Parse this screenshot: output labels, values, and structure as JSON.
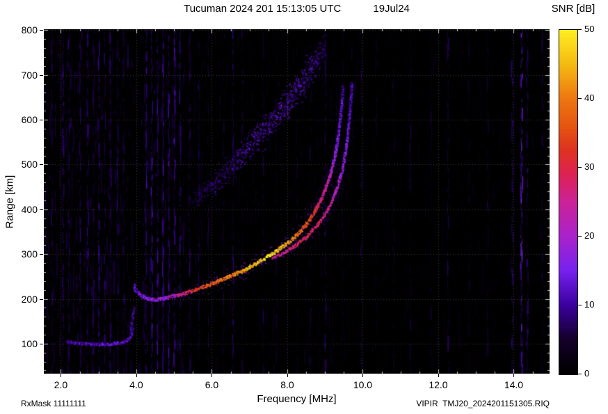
{
  "header": {
    "title": "Tucuman 2024 201 15:13:05 UTC",
    "date": "19Jul24",
    "colorbar_label": "SNR [dB]"
  },
  "footer": {
    "rx_mask": "RxMask 11111111",
    "file": "VIPIR  TMJ20_2024201151305.RIQ"
  },
  "chart_data": {
    "type": "heatmap",
    "title": "Tucuman 2024 201 15:13:05 UTC    19Jul24",
    "xlabel": "Frequency [MHz]",
    "ylabel": "Range [km]",
    "xlim": [
      1.55,
      14.95
    ],
    "ylim": [
      33,
      802
    ],
    "xticks": [
      2,
      4,
      6,
      8,
      10,
      12,
      14
    ],
    "xtick_labels": [
      "2.0",
      "4.0",
      "6.0",
      "8.0",
      "10.0",
      "12.0",
      "14.0"
    ],
    "yticks": [
      100,
      200,
      300,
      400,
      500,
      600,
      700,
      800
    ],
    "grid": true,
    "background_color": "#000000",
    "colorbar": {
      "label": "SNR [dB]",
      "min": 0,
      "max": 50,
      "ticks": [
        0,
        10,
        20,
        30,
        40,
        50
      ]
    },
    "palette_stops": [
      [
        0.0,
        "#000000"
      ],
      [
        0.1,
        "#14002a"
      ],
      [
        0.2,
        "#3c00a0"
      ],
      [
        0.3,
        "#7722ee"
      ],
      [
        0.4,
        "#aa22cc"
      ],
      [
        0.5,
        "#cc2299"
      ],
      [
        0.58,
        "#dd2255"
      ],
      [
        0.65,
        "#dd3322"
      ],
      [
        0.72,
        "#e65511"
      ],
      [
        0.8,
        "#ee7711"
      ],
      [
        0.9,
        "#f5bb11"
      ],
      [
        1.0,
        "#ffee22"
      ]
    ],
    "traces": [
      {
        "name": "E-region echo",
        "style": "sharp",
        "core_w": 4,
        "halo_w": 4,
        "density": 1,
        "points": [
          [
            2.15,
            106,
            8
          ],
          [
            2.35,
            103,
            10
          ],
          [
            2.6,
            101,
            11
          ],
          [
            2.9,
            100,
            12
          ],
          [
            3.2,
            100,
            12
          ],
          [
            3.45,
            102,
            13
          ],
          [
            3.65,
            105,
            13
          ],
          [
            3.78,
            110,
            12
          ],
          [
            3.86,
            122,
            11
          ],
          [
            3.92,
            138,
            9
          ]
        ]
      },
      {
        "name": "E-region cusp spread",
        "style": "sharp",
        "core_w": 5,
        "halo_w": 6,
        "density": 0.8,
        "points": [
          [
            3.84,
            128,
            9
          ],
          [
            3.87,
            148,
            10
          ],
          [
            3.9,
            168,
            9
          ],
          [
            3.94,
            183,
            7
          ]
        ]
      },
      {
        "name": "F-region O-mode trace",
        "style": "sharp",
        "core_w": 5,
        "halo_w": 9,
        "density": 1,
        "points": [
          [
            3.92,
            232,
            10
          ],
          [
            3.98,
            220,
            13
          ],
          [
            4.1,
            209,
            15
          ],
          [
            4.3,
            201,
            16
          ],
          [
            4.5,
            199,
            17
          ],
          [
            4.7,
            202,
            19
          ],
          [
            4.9,
            206,
            21
          ],
          [
            5.1,
            210,
            24
          ],
          [
            5.3,
            215,
            27
          ],
          [
            5.5,
            220,
            31
          ],
          [
            5.7,
            226,
            34
          ],
          [
            5.9,
            232,
            36
          ],
          [
            6.1,
            239,
            38
          ],
          [
            6.3,
            246,
            39
          ],
          [
            6.5,
            253,
            40
          ],
          [
            6.7,
            260,
            42
          ],
          [
            6.9,
            268,
            44
          ],
          [
            7.1,
            277,
            45
          ],
          [
            7.3,
            287,
            47
          ],
          [
            7.5,
            297,
            50
          ],
          [
            7.7,
            308,
            47
          ],
          [
            7.9,
            320,
            44
          ],
          [
            8.1,
            333,
            42
          ],
          [
            8.3,
            349,
            39
          ],
          [
            8.5,
            369,
            35
          ],
          [
            8.7,
            394,
            31
          ],
          [
            8.9,
            426,
            27
          ],
          [
            9.05,
            458,
            23
          ],
          [
            9.15,
            487,
            20
          ],
          [
            9.25,
            522,
            17
          ],
          [
            9.33,
            560,
            15
          ],
          [
            9.39,
            603,
            13
          ],
          [
            9.44,
            648,
            11
          ],
          [
            9.47,
            678,
            9
          ]
        ]
      },
      {
        "name": "F-region X-mode trace",
        "style": "sharp",
        "core_w": 4,
        "halo_w": 7,
        "density": 0.9,
        "points": [
          [
            7.6,
            293,
            24
          ],
          [
            7.9,
            305,
            26
          ],
          [
            8.2,
            320,
            28
          ],
          [
            8.5,
            340,
            29
          ],
          [
            8.8,
            367,
            28
          ],
          [
            9.0,
            392,
            26
          ],
          [
            9.15,
            415,
            24
          ],
          [
            9.3,
            448,
            21
          ],
          [
            9.45,
            490,
            18
          ],
          [
            9.55,
            540,
            15
          ],
          [
            9.62,
            592,
            13
          ],
          [
            9.67,
            645,
            11
          ],
          [
            9.7,
            685,
            9
          ]
        ]
      },
      {
        "name": "second-hop spread-F echo",
        "style": "diffuse",
        "points": [
          [
            5.5,
            420,
            8,
            30
          ],
          [
            5.9,
            448,
            10,
            36
          ],
          [
            6.3,
            480,
            11,
            40
          ],
          [
            6.7,
            515,
            12,
            44
          ],
          [
            7.1,
            552,
            13,
            48
          ],
          [
            7.5,
            590,
            13,
            50
          ],
          [
            7.9,
            630,
            14,
            52
          ],
          [
            8.3,
            675,
            14,
            54
          ],
          [
            8.7,
            725,
            12,
            54
          ],
          [
            9.0,
            768,
            10,
            50
          ]
        ]
      }
    ],
    "rfi_lines": [
      {
        "f": 1.75,
        "snr": 7
      },
      {
        "f": 2.05,
        "snr": 9
      },
      {
        "f": 2.2,
        "snr": 8
      },
      {
        "f": 2.5,
        "snr": 8
      },
      {
        "f": 2.7,
        "snr": 9
      },
      {
        "f": 2.85,
        "snr": 8
      },
      {
        "f": 3.0,
        "snr": 10
      },
      {
        "f": 3.15,
        "snr": 8
      },
      {
        "f": 3.3,
        "snr": 9
      },
      {
        "f": 3.5,
        "snr": 8
      },
      {
        "f": 3.65,
        "snr": 7
      },
      {
        "f": 4.25,
        "snr": 10
      },
      {
        "f": 4.4,
        "snr": 11
      },
      {
        "f": 4.55,
        "snr": 10
      },
      {
        "f": 4.7,
        "snr": 11
      },
      {
        "f": 4.85,
        "snr": 10
      },
      {
        "f": 5.0,
        "snr": 11
      },
      {
        "f": 5.15,
        "snr": 9
      },
      {
        "f": 5.4,
        "snr": 8
      },
      {
        "f": 5.65,
        "snr": 7
      },
      {
        "f": 5.9,
        "snr": 6
      },
      {
        "f": 6.3,
        "snr": 6
      },
      {
        "f": 6.55,
        "snr": 8
      },
      {
        "f": 6.8,
        "snr": 6
      },
      {
        "f": 7.35,
        "snr": 6
      },
      {
        "f": 7.7,
        "snr": 5
      },
      {
        "f": 8.25,
        "snr": 5
      },
      {
        "f": 8.6,
        "snr": 6
      },
      {
        "f": 9.0,
        "snr": 8
      },
      {
        "f": 9.45,
        "snr": 5
      },
      {
        "f": 9.95,
        "snr": 6
      },
      {
        "f": 10.35,
        "snr": 5
      },
      {
        "f": 10.8,
        "snr": 5
      },
      {
        "f": 11.25,
        "snr": 6
      },
      {
        "f": 11.8,
        "snr": 5
      },
      {
        "f": 12.25,
        "snr": 7
      },
      {
        "f": 12.8,
        "snr": 5
      },
      {
        "f": 13.3,
        "snr": 6
      },
      {
        "f": 13.95,
        "snr": 9
      },
      {
        "f": 14.2,
        "snr": 14,
        "w": 3
      },
      {
        "f": 14.35,
        "snr": 9
      },
      {
        "f": 14.75,
        "snr": 6
      }
    ],
    "noise": {
      "base_snr": 2.6,
      "bands": [
        {
          "f0": 1.55,
          "f1": 5.25,
          "boost": 3.4
        },
        {
          "f0": 5.25,
          "f1": 9.9,
          "boost": 1.0
        }
      ],
      "speckle_count": 5200
    }
  }
}
